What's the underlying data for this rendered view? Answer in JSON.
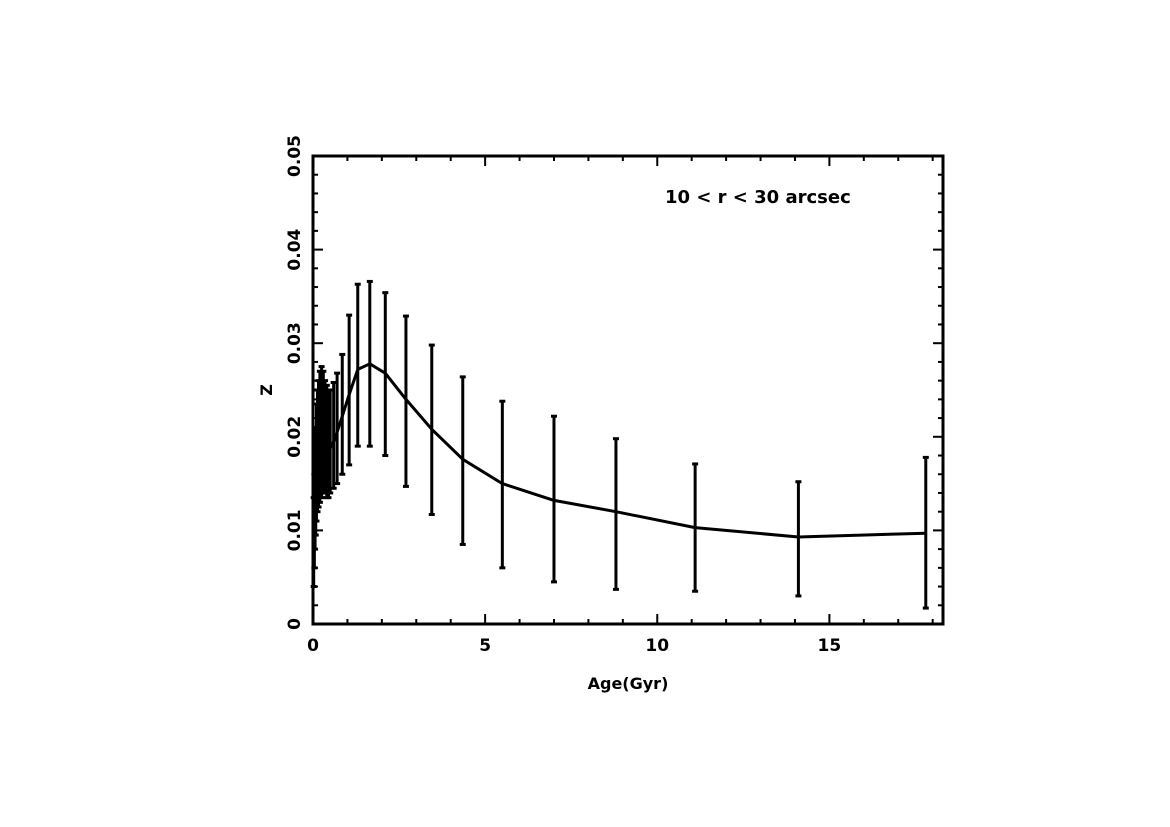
{
  "chart_data": {
    "type": "line",
    "title": "",
    "annotation": "10 < r < 30 arcsec",
    "xlabel": "Age(Gyr)",
    "ylabel": "Z",
    "xlim": [
      0,
      18.3
    ],
    "ylim": [
      0,
      0.05
    ],
    "x_ticks": [
      0,
      5,
      10,
      15
    ],
    "x_tick_labels": [
      "0",
      "5",
      "10",
      "15"
    ],
    "y_ticks": [
      0,
      0.01,
      0.02,
      0.03,
      0.04,
      0.05
    ],
    "y_tick_labels": [
      "0",
      "0.01",
      "0.02",
      "0.03",
      "0.04",
      "0.05"
    ],
    "grid": false,
    "series": [
      {
        "x": [
          0.02,
          0.04,
          0.06,
          0.08,
          0.1,
          0.13,
          0.16,
          0.2,
          0.25,
          0.3,
          0.35,
          0.4,
          0.45,
          0.5,
          0.6,
          0.7,
          0.85,
          1.05,
          1.3,
          1.65,
          2.1,
          2.7,
          3.45,
          4.35,
          5.5,
          7.0,
          8.8,
          11.1,
          14.1,
          17.8
        ],
        "y": [
          0.0085,
          0.0105,
          0.0125,
          0.0142,
          0.0155,
          0.0165,
          0.0172,
          0.0178,
          0.0183,
          0.0185,
          0.0184,
          0.0184,
          0.0185,
          0.0188,
          0.0195,
          0.0205,
          0.0222,
          0.0245,
          0.0272,
          0.0278,
          0.0268,
          0.024,
          0.0208,
          0.0176,
          0.015,
          0.0132,
          0.012,
          0.0103,
          0.0093,
          0.0097
        ],
        "y_low": [
          0.004,
          0.006,
          0.008,
          0.0095,
          0.011,
          0.012,
          0.0125,
          0.013,
          0.0135,
          0.014,
          0.014,
          0.0135,
          0.0135,
          0.014,
          0.0145,
          0.015,
          0.016,
          0.017,
          0.019,
          0.019,
          0.018,
          0.0147,
          0.0117,
          0.0085,
          0.006,
          0.0045,
          0.0037,
          0.0035,
          0.003,
          0.0017
        ],
        "y_high": [
          0.0135,
          0.016,
          0.019,
          0.021,
          0.0235,
          0.025,
          0.026,
          0.027,
          0.0275,
          0.027,
          0.026,
          0.0255,
          0.025,
          0.025,
          0.0258,
          0.0268,
          0.0288,
          0.033,
          0.0363,
          0.0366,
          0.0354,
          0.0329,
          0.0298,
          0.0264,
          0.0238,
          0.0222,
          0.0198,
          0.0171,
          0.0152,
          0.0178
        ]
      }
    ]
  }
}
